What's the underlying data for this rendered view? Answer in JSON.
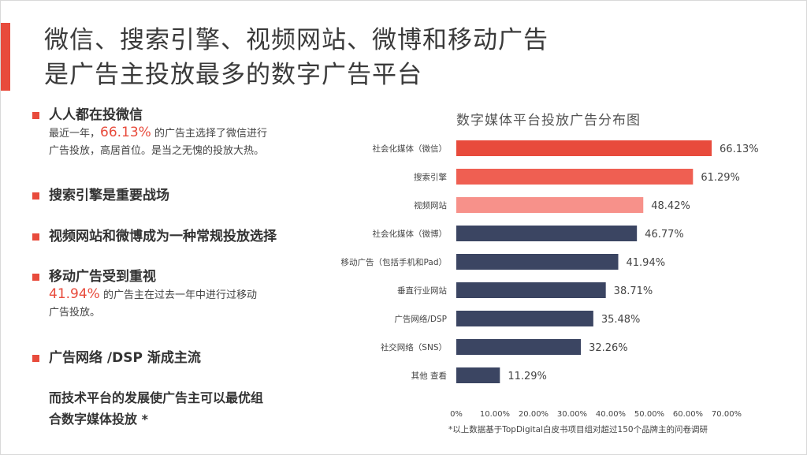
{
  "title": {
    "line1": "微信、搜索引擎、视频网站、微博和移动广告",
    "line2": "是广告主投放最多的数字广告平台"
  },
  "sections": [
    {
      "heading": "人人都在投微信",
      "highlight": "66.13%",
      "text_before": "最近一年，",
      "text_after": " 的广告主选择了微信进行",
      "text_line2": "广告投放，高居首位。是当之无愧的投放大热。"
    },
    {
      "heading": "搜索引擎是重要战场"
    },
    {
      "heading": "视频网站和微博成为一种常规投放选择"
    },
    {
      "heading": "移动广告受到重视",
      "highlight": "41.94%",
      "text_after": " 的广告主在过去一年中进行过移动",
      "text_line2": "广告投放。"
    },
    {
      "heading": "广告网络 /DSP 渐成主流"
    }
  ],
  "closing": {
    "line1": "而技术平台的发展使广告主可以最优组",
    "line2": "合数字媒体投放 *"
  },
  "chart_data": {
    "type": "bar",
    "orientation": "horizontal",
    "title": "数字媒体平台投放广告分布图",
    "categories": [
      "社会化媒体（微信）",
      "搜索引擎",
      "视频网站",
      "社会化媒体（微博）",
      "移动广告（包括手机和Pad）",
      "垂直行业网站",
      "广告网络/DSP",
      "社交网络（SNS）",
      "其他 查看"
    ],
    "values": [
      66.13,
      61.29,
      48.42,
      46.77,
      41.94,
      38.71,
      35.48,
      32.26,
      11.29
    ],
    "value_labels": [
      "66.13%",
      "61.29%",
      "48.42%",
      "46.77%",
      "41.94%",
      "38.71%",
      "35.48%",
      "32.26%",
      "11.29%"
    ],
    "bar_colors": [
      "#e84b3c",
      "#ef5f52",
      "#f7918a",
      "#3b4562",
      "#3b4562",
      "#3b4562",
      "#3b4562",
      "#3b4562",
      "#3b4562"
    ],
    "xticks": [
      "0%",
      "10.00%",
      "20.00%",
      "30.00%",
      "40.00%",
      "50.00%",
      "60.00%",
      "70.00%"
    ],
    "xlim": [
      0,
      70
    ],
    "grid": false
  },
  "footnote": "*以上数据基于TopDigital白皮书项目组对超过150个品牌主的问卷调研",
  "colors": {
    "accent": "#e84b3c",
    "dark_bar": "#3b4562"
  }
}
